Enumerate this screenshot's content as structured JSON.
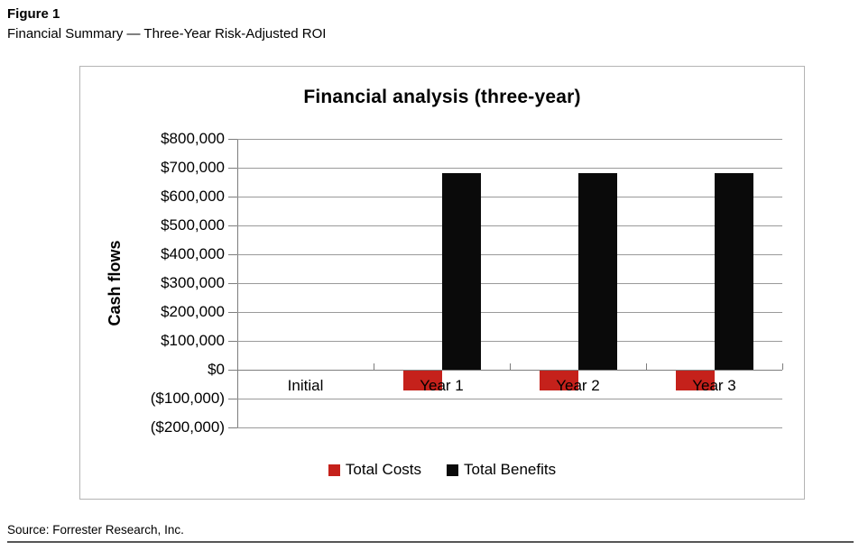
{
  "page": {
    "figure_label": "Figure 1",
    "figure_caption": "Financial Summary — Three-Year Risk-Adjusted ROI",
    "source_line": "Source: Forrester Research, Inc."
  },
  "chart_data": {
    "type": "bar",
    "title": "Financial analysis (three-year)",
    "xlabel": "",
    "ylabel": "Cash flows",
    "categories": [
      "Initial",
      "Year 1",
      "Year 2",
      "Year 3"
    ],
    "series": [
      {
        "name": "Total Costs",
        "color": "#c5211b",
        "values": [
          0,
          -70000,
          -70000,
          -70000
        ]
      },
      {
        "name": "Total Benefits",
        "color": "#0a0a0a",
        "values": [
          0,
          680000,
          680000,
          680000
        ]
      }
    ],
    "ylim": [
      -200000,
      800000
    ],
    "ytick_step": 100000,
    "ytick_labels": [
      "($200,000)",
      "($100,000)",
      "$0",
      "$100,000",
      "$200,000",
      "$300,000",
      "$400,000",
      "$500,000",
      "$600,000",
      "$700,000",
      "$800,000"
    ],
    "grid": true,
    "legend_position": "bottom"
  }
}
